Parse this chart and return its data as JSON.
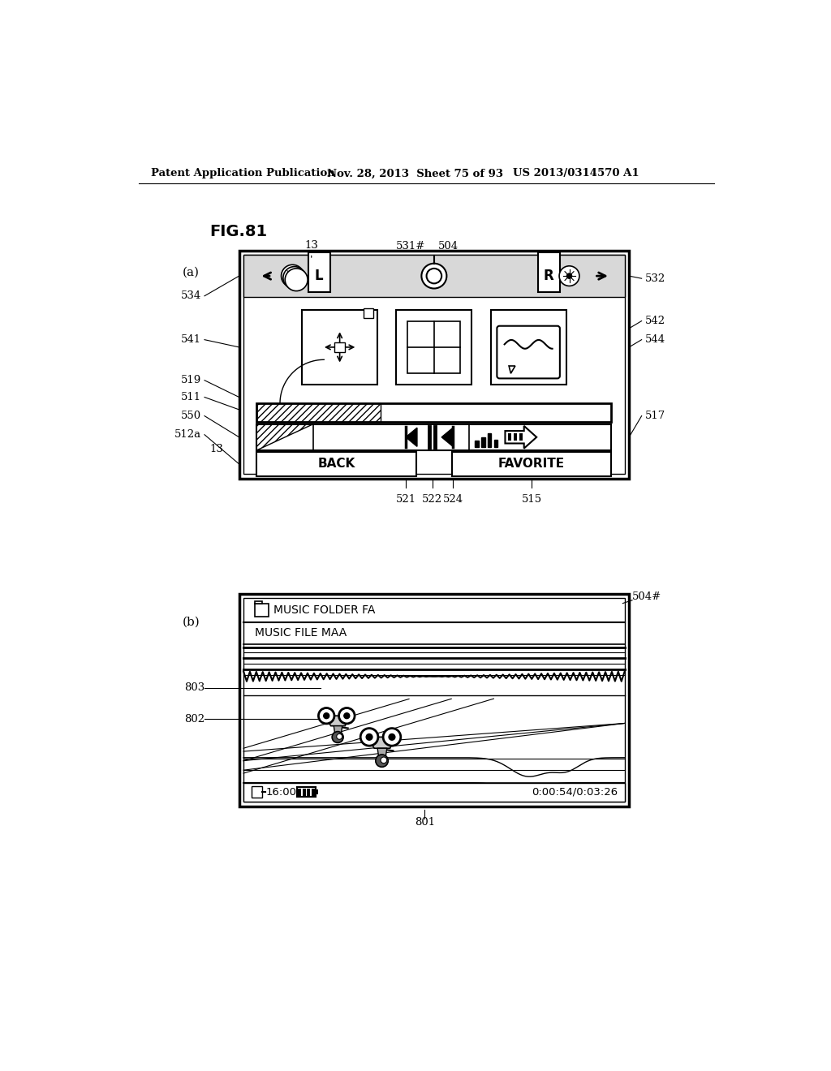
{
  "bg_color": "#ffffff",
  "header_left": "Patent Application Publication",
  "header_mid": "Nov. 28, 2013  Sheet 75 of 93",
  "header_right": "US 2013/0314570 A1",
  "fig_label": "FIG.81",
  "sub_a": "(a)",
  "sub_b": "(b)"
}
